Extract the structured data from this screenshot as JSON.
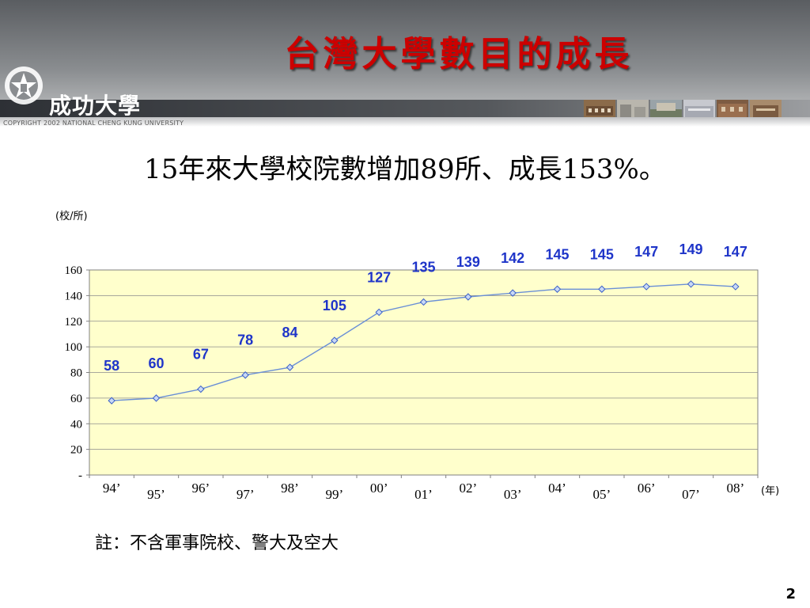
{
  "slide": {
    "title": "台灣大學數目的成長",
    "logo_text": "成功大學",
    "copyright": "COPYRIGHT 2002 NATIONAL CHENG KUNG UNIVERSITY",
    "subtitle": "15年來大學校院數增加89所、成長153%。",
    "note": "註：不含軍事院校、警大及空大",
    "page_number": "2"
  },
  "colors": {
    "title": "#cc0000",
    "plot_background": "#ffffcc",
    "line": "#6a8fd6",
    "marker_fill": "#c9d9f5",
    "marker_stroke": "#3a5fc8",
    "data_label": "#1f35c9"
  },
  "chart_data": {
    "type": "line",
    "title": "",
    "ylabel": "(校/所)",
    "xlabel": "(年)",
    "categories": [
      "94’",
      "95’",
      "96’",
      "97’",
      "98’",
      "99’",
      "00’",
      "01’",
      "02’",
      "03’",
      "04’",
      "05’",
      "06’",
      "07’",
      "08’"
    ],
    "series": [
      {
        "values": [
          58,
          60,
          67,
          78,
          84,
          105,
          127,
          135,
          139,
          142,
          145,
          145,
          147,
          149,
          147
        ]
      }
    ],
    "ylim": [
      0,
      160
    ],
    "yticks": [
      "-",
      "20",
      "40",
      "60",
      "80",
      "100",
      "120",
      "140",
      "160"
    ],
    "grid": "horizontal"
  }
}
